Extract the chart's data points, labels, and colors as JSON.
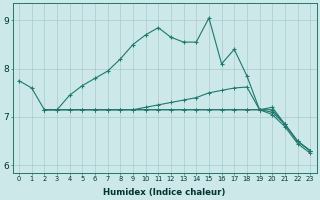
{
  "xlabel": "Humidex (Indice chaleur)",
  "bg_color": "#cce8e8",
  "line_color": "#1a7a6e",
  "x_ticks": [
    0,
    1,
    2,
    3,
    4,
    5,
    6,
    7,
    8,
    9,
    10,
    11,
    12,
    13,
    14,
    15,
    16,
    17,
    18,
    19,
    20,
    21,
    22,
    23
  ],
  "ylim": [
    5.85,
    9.35
  ],
  "xlim": [
    -0.5,
    23.5
  ],
  "yticks": [
    6,
    7,
    8,
    9
  ],
  "line1_x": [
    0,
    1,
    2,
    3,
    4,
    5,
    6,
    7,
    8,
    9,
    10,
    11,
    12,
    13,
    14,
    15,
    16,
    17,
    18,
    19,
    20,
    21,
    22,
    23
  ],
  "line1_y": [
    7.75,
    7.6,
    7.15,
    7.15,
    7.45,
    7.65,
    7.8,
    7.95,
    8.2,
    8.5,
    8.7,
    8.85,
    8.65,
    8.55,
    8.55,
    9.05,
    8.1,
    8.4,
    7.85,
    7.15,
    7.2,
    6.85,
    6.5,
    6.3
  ],
  "line2_x": [
    2,
    3,
    4,
    5,
    6,
    7,
    8,
    9,
    10,
    11,
    12,
    13,
    14,
    15,
    16,
    17,
    18,
    19,
    20,
    21,
    22,
    23
  ],
  "line2_y": [
    7.15,
    7.15,
    7.15,
    7.15,
    7.15,
    7.15,
    7.15,
    7.15,
    7.2,
    7.25,
    7.3,
    7.35,
    7.4,
    7.5,
    7.55,
    7.6,
    7.62,
    7.15,
    7.15,
    6.85,
    6.5,
    6.3
  ],
  "line3_x": [
    2,
    3,
    4,
    5,
    6,
    7,
    8,
    9,
    10,
    11,
    12,
    13,
    14,
    15,
    16,
    17,
    18,
    19,
    20,
    21,
    22,
    23
  ],
  "line3_y": [
    7.15,
    7.15,
    7.15,
    7.15,
    7.15,
    7.15,
    7.15,
    7.15,
    7.15,
    7.15,
    7.15,
    7.15,
    7.15,
    7.15,
    7.15,
    7.15,
    7.15,
    7.15,
    7.1,
    6.85,
    6.5,
    6.3
  ],
  "line4_x": [
    2,
    3,
    4,
    5,
    6,
    7,
    8,
    9,
    10,
    11,
    12,
    13,
    14,
    15,
    16,
    17,
    18,
    19,
    20,
    21,
    22,
    23
  ],
  "line4_y": [
    7.15,
    7.15,
    7.15,
    7.15,
    7.15,
    7.15,
    7.15,
    7.15,
    7.15,
    7.15,
    7.15,
    7.15,
    7.15,
    7.15,
    7.15,
    7.15,
    7.15,
    7.15,
    7.05,
    6.8,
    6.45,
    6.25
  ]
}
